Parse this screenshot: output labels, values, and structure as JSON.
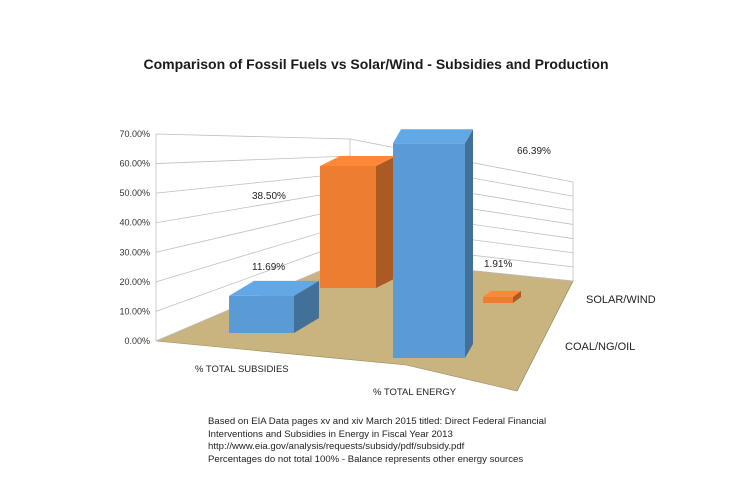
{
  "chart_data": {
    "type": "bar",
    "title": "Comparison of Fossil Fuels vs Solar/Wind - Subsidies and Production",
    "categories": [
      "% TOTAL SUBSIDIES",
      "% TOTAL ENERGY"
    ],
    "series": [
      {
        "name": "COAL/NG/OIL",
        "values": [
          11.69,
          66.39
        ],
        "color": "#5b9bd5"
      },
      {
        "name": "SOLAR/WIND",
        "values": [
          38.5,
          1.91
        ],
        "color": "#ed7d31"
      }
    ],
    "data_labels": [
      [
        "11.69%",
        "66.39%"
      ],
      [
        "38.50%",
        "1.91%"
      ]
    ],
    "ylim": [
      0,
      70
    ],
    "yticks": [
      "0.00%",
      "10.00%",
      "20.00%",
      "30.00%",
      "40.00%",
      "50.00%",
      "60.00%",
      "70.00%"
    ],
    "floor_color": "#c9b47f",
    "grid": true,
    "view": "3d-column"
  },
  "notes": [
    "Based on EIA Data pages xv and xiv  March 2015 titled: Direct Federal Financial",
    "Interventions and Subsidies in Energy in Fiscal Year 2013",
    "http://www.eia.gov/analysis/requests/subsidy/pdf/subsidy.pdf",
    "Percentages do not total 100% - Balance represents other energy sources"
  ]
}
